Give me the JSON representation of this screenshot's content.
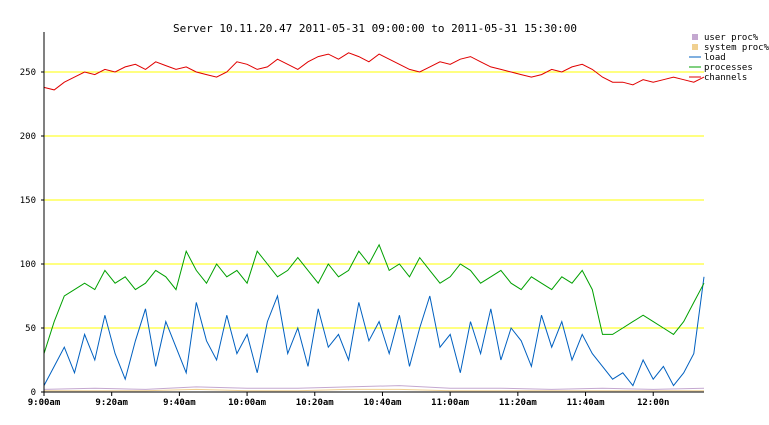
{
  "chart_data": {
    "type": "line",
    "title": "Server 10.11.20.47   2011-05-31 09:00:00 to 2011-05-31 15:30:00",
    "xlabel": "",
    "ylabel": "",
    "x_ticks": [
      "9:00am",
      "9:20am",
      "9:40am",
      "10:00am",
      "10:20am",
      "10:40am",
      "11:00am",
      "11:20am",
      "11:40am",
      "12:00n"
    ],
    "x_range_minutes": [
      0,
      195
    ],
    "y_ticks": [
      0,
      50,
      100,
      150,
      200,
      250
    ],
    "ylim": [
      0,
      280
    ],
    "grid": "horizontal yellow lines",
    "legend_position": "top-right",
    "series": [
      {
        "name": "user proc%",
        "color": "#c4a8d0",
        "legend_style": "box",
        "x": [
          0,
          15,
          30,
          45,
          60,
          75,
          90,
          105,
          120,
          135,
          150,
          165,
          180,
          195
        ],
        "values": [
          2,
          3,
          2,
          4,
          3,
          3,
          4,
          5,
          3,
          3,
          2,
          3,
          2,
          3
        ]
      },
      {
        "name": "system proc%",
        "color": "#f0d090",
        "legend_style": "box",
        "x": [
          0,
          15,
          30,
          45,
          60,
          75,
          90,
          105,
          120,
          135,
          150,
          165,
          180,
          195
        ],
        "values": [
          1,
          1,
          1,
          2,
          1,
          1,
          2,
          2,
          1,
          1,
          1,
          1,
          1,
          1
        ]
      },
      {
        "name": "load",
        "color": "#0060c0",
        "legend_style": "line",
        "x": [
          0,
          3,
          6,
          9,
          12,
          15,
          18,
          21,
          24,
          27,
          30,
          33,
          36,
          39,
          42,
          45,
          48,
          51,
          54,
          57,
          60,
          63,
          66,
          69,
          72,
          75,
          78,
          81,
          84,
          87,
          90,
          93,
          96,
          99,
          102,
          105,
          108,
          111,
          114,
          117,
          120,
          123,
          126,
          129,
          132,
          135,
          138,
          141,
          144,
          147,
          150,
          153,
          156,
          159,
          162,
          165,
          168,
          171,
          174,
          177,
          180,
          183,
          186,
          189,
          192,
          195
        ],
        "values": [
          5,
          20,
          35,
          15,
          45,
          25,
          60,
          30,
          10,
          40,
          65,
          20,
          55,
          35,
          15,
          70,
          40,
          25,
          60,
          30,
          45,
          15,
          55,
          75,
          30,
          50,
          20,
          65,
          35,
          45,
          25,
          70,
          40,
          55,
          30,
          60,
          20,
          50,
          75,
          35,
          45,
          15,
          55,
          30,
          65,
          25,
          50,
          40,
          20,
          60,
          35,
          55,
          25,
          45,
          30,
          20,
          10,
          15,
          5,
          25,
          10,
          20,
          5,
          15,
          30,
          90
        ]
      },
      {
        "name": "processes",
        "color": "#00a000",
        "legend_style": "line",
        "x": [
          0,
          3,
          6,
          9,
          12,
          15,
          18,
          21,
          24,
          27,
          30,
          33,
          36,
          39,
          42,
          45,
          48,
          51,
          54,
          57,
          60,
          63,
          66,
          69,
          72,
          75,
          78,
          81,
          84,
          87,
          90,
          93,
          96,
          99,
          102,
          105,
          108,
          111,
          114,
          117,
          120,
          123,
          126,
          129,
          132,
          135,
          138,
          141,
          144,
          147,
          150,
          153,
          156,
          159,
          162,
          165,
          168,
          171,
          174,
          177,
          180,
          183,
          186,
          189,
          192,
          195
        ],
        "values": [
          30,
          55,
          75,
          80,
          85,
          80,
          95,
          85,
          90,
          80,
          85,
          95,
          90,
          80,
          110,
          95,
          85,
          100,
          90,
          95,
          85,
          110,
          100,
          90,
          95,
          105,
          95,
          85,
          100,
          90,
          95,
          110,
          100,
          115,
          95,
          100,
          90,
          105,
          95,
          85,
          90,
          100,
          95,
          85,
          90,
          95,
          85,
          80,
          90,
          85,
          80,
          90,
          85,
          95,
          80,
          45,
          45,
          50,
          55,
          60,
          55,
          50,
          45,
          55,
          70,
          85
        ]
      },
      {
        "name": "channels",
        "color": "#e00000",
        "legend_style": "line",
        "x": [
          0,
          3,
          6,
          9,
          12,
          15,
          18,
          21,
          24,
          27,
          30,
          33,
          36,
          39,
          42,
          45,
          48,
          51,
          54,
          57,
          60,
          63,
          66,
          69,
          72,
          75,
          78,
          81,
          84,
          87,
          90,
          93,
          96,
          99,
          102,
          105,
          108,
          111,
          114,
          117,
          120,
          123,
          126,
          129,
          132,
          135,
          138,
          141,
          144,
          147,
          150,
          153,
          156,
          159,
          162,
          165,
          168,
          171,
          174,
          177,
          180,
          183,
          186,
          189,
          192,
          195
        ],
        "values": [
          238,
          236,
          242,
          246,
          250,
          248,
          252,
          250,
          254,
          256,
          252,
          258,
          255,
          252,
          254,
          250,
          248,
          246,
          250,
          258,
          256,
          252,
          254,
          260,
          256,
          252,
          258,
          262,
          264,
          260,
          265,
          262,
          258,
          264,
          260,
          256,
          252,
          250,
          254,
          258,
          256,
          260,
          262,
          258,
          254,
          252,
          250,
          248,
          246,
          248,
          252,
          250,
          254,
          256,
          252,
          246,
          242,
          242,
          240,
          244,
          242,
          244,
          246,
          244,
          242,
          246
        ]
      }
    ]
  }
}
